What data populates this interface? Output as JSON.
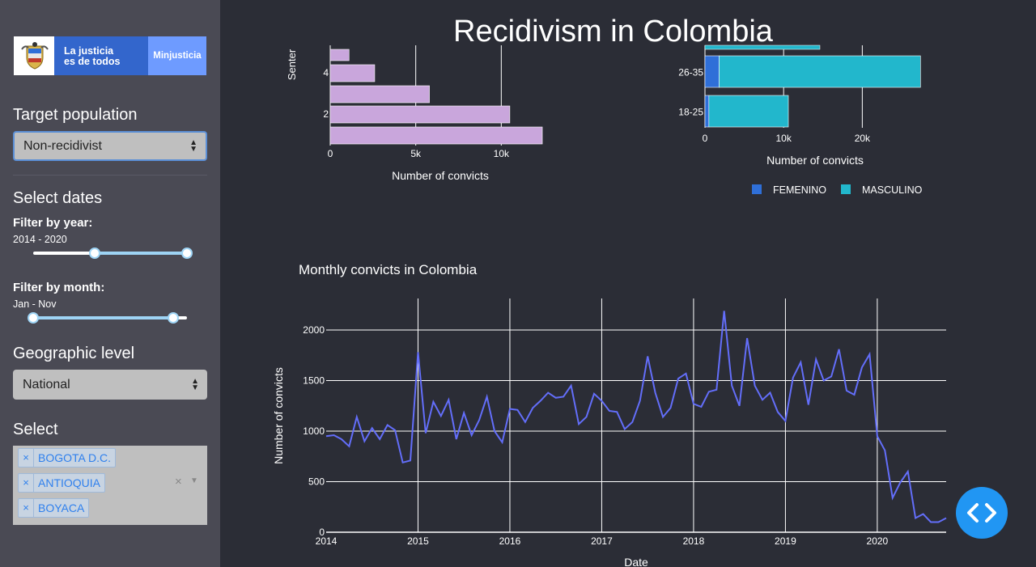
{
  "page": {
    "title": "Recidivism in Colombia"
  },
  "logo": {
    "line1": "La justicia",
    "line2": "es de todos",
    "brand": "Minjusticia"
  },
  "sidebar": {
    "target_population": {
      "label": "Target population",
      "value": "Non-recidivist"
    },
    "dates": {
      "label": "Select dates",
      "year": {
        "label": "Filter by year:",
        "value": "2014 - 2020",
        "range_fraction": [
          0.4,
          1.0
        ]
      },
      "month": {
        "label": "Filter by month:",
        "value": "Jan - Nov",
        "range_fraction": [
          0.0,
          0.91
        ]
      }
    },
    "geographic_level": {
      "label": "Geographic level",
      "value": "National"
    },
    "select": {
      "label": "Select",
      "chips": [
        "BOGOTA D.C.",
        "ANTIOQUIA",
        "BOYACA"
      ],
      "clear": "×",
      "remove": "×"
    }
  },
  "colors": {
    "sentence_bars": "#c9a6dc",
    "femenino": "#2f6fd8",
    "masculino": "#22b7cc",
    "line": "#636efa",
    "fab": "#2196f3"
  },
  "icons": {
    "fab": "code-icon"
  },
  "chart_data": [
    {
      "type": "bar",
      "orientation": "horizontal",
      "ylabel": "Senter",
      "xlabel": "Number of convicts",
      "xticks": [
        "0",
        "5k",
        "10k"
      ],
      "yticks": [
        "4",
        "2"
      ],
      "xlim": [
        0,
        15000
      ],
      "values": [
        1100,
        2600,
        5800,
        10500,
        12400
      ]
    },
    {
      "type": "bar",
      "orientation": "horizontal",
      "stacked": true,
      "xlabel": "Number of convicts",
      "xticks": [
        "0",
        "10k",
        "20k"
      ],
      "xlim": [
        0,
        32000
      ],
      "categories": [
        "26-35",
        "18-25"
      ],
      "series": [
        {
          "name": "FEMENINO",
          "values": [
            1800,
            500
          ]
        },
        {
          "name": "MASCULINO",
          "values": [
            25600,
            10100
          ]
        }
      ]
    },
    {
      "type": "line",
      "title": "Monthly convicts in Colombia",
      "xlabel": "Date",
      "ylabel": "Number of convicts",
      "xlim": [
        2014,
        2020.75
      ],
      "ylim": [
        0,
        2000
      ],
      "xticks": [
        "2014",
        "2015",
        "2016",
        "2017",
        "2018",
        "2019",
        "2020"
      ],
      "yticks": [
        "0",
        "500",
        "1000",
        "1500",
        "2000"
      ],
      "x_start": 2014,
      "x_step": 0.08333,
      "values": [
        950,
        960,
        920,
        850,
        1140,
        900,
        1030,
        920,
        1060,
        1010,
        690,
        710,
        1780,
        980,
        1290,
        1150,
        1310,
        920,
        1180,
        960,
        1110,
        1340,
        1000,
        890,
        1220,
        1210,
        1090,
        1230,
        1300,
        1380,
        1330,
        1340,
        1450,
        1070,
        1140,
        1370,
        1300,
        1200,
        1190,
        1020,
        1090,
        1300,
        1740,
        1380,
        1140,
        1230,
        1520,
        1570,
        1270,
        1240,
        1390,
        1410,
        2190,
        1450,
        1250,
        1920,
        1450,
        1310,
        1380,
        1190,
        1100,
        1530,
        1680,
        1260,
        1710,
        1500,
        1540,
        1810,
        1400,
        1360,
        1630,
        1760,
        950,
        810,
        340,
        490,
        600,
        140,
        180,
        100,
        100,
        140
      ]
    }
  ]
}
